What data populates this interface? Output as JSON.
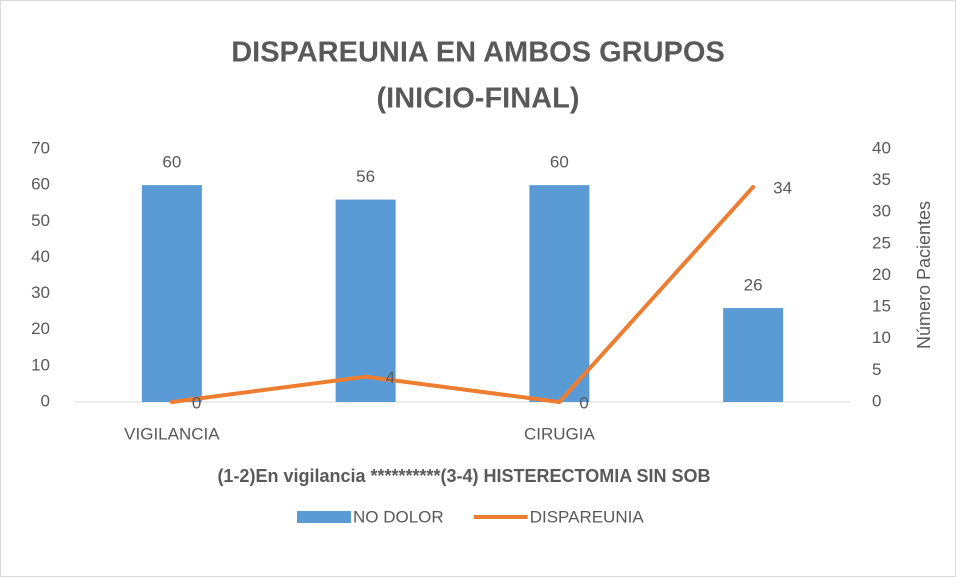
{
  "chart_data": {
    "type": "bar-line",
    "title": [
      "DISPAREUNIA EN AMBOS GRUPOS",
      "(INICIO-FINAL)"
    ],
    "x_label": "(1-2)En vigilancia **********(3-4) HISTERECTOMIA SIN SOB",
    "y2_label": "Número Pacientes",
    "categories": [
      "VIGILANCIA",
      null,
      "CIRUGIA",
      null
    ],
    "series": [
      {
        "name": "NO DOLOR",
        "type": "bar",
        "color": "#5b9bd5",
        "values": [
          60,
          56,
          60,
          26
        ]
      },
      {
        "name": "DISPAREUNIA",
        "type": "line",
        "axis": "y2",
        "color": "#ed7d31",
        "values": [
          0,
          4,
          0,
          34
        ]
      }
    ],
    "ylim": [
      0,
      70
    ],
    "yticks": [
      0,
      10,
      20,
      30,
      40,
      50,
      60,
      70
    ],
    "y2lim": [
      0,
      40
    ],
    "y2ticks": [
      0,
      5,
      10,
      15,
      20,
      25,
      30,
      35,
      40
    ],
    "legend": "bottom",
    "grid": false
  }
}
